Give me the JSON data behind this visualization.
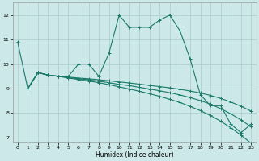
{
  "title": "",
  "xlabel": "Humidex (Indice chaleur)",
  "bg_color": "#cce8e8",
  "grid_color": "#aacccc",
  "line_color": "#1a7a6a",
  "xlim": [
    -0.5,
    23.5
  ],
  "ylim": [
    6.8,
    12.5
  ],
  "yticks": [
    7,
    8,
    9,
    10,
    11,
    12
  ],
  "xticks": [
    0,
    1,
    2,
    3,
    4,
    5,
    6,
    7,
    8,
    9,
    10,
    11,
    12,
    13,
    14,
    15,
    16,
    17,
    18,
    19,
    20,
    21,
    22,
    23
  ],
  "lines": [
    {
      "x": [
        0,
        1,
        2,
        3,
        4,
        5,
        6,
        7,
        8,
        9,
        10,
        11,
        12,
        13,
        14,
        15,
        16,
        17,
        18,
        19,
        20,
        21,
        22,
        23
      ],
      "y": [
        10.9,
        9.0,
        9.65,
        9.55,
        9.5,
        9.5,
        10.0,
        10.0,
        9.5,
        10.45,
        12.0,
        11.5,
        11.5,
        11.5,
        11.8,
        12.0,
        11.35,
        10.2,
        8.75,
        8.3,
        8.3,
        7.55,
        7.2,
        7.55
      ]
    },
    {
      "x": [
        1,
        2,
        3,
        4,
        5,
        6,
        7,
        8,
        9,
        10,
        11,
        12,
        13,
        14,
        15,
        16,
        17,
        18,
        19,
        20,
        21,
        22,
        23
      ],
      "y": [
        9.0,
        9.65,
        9.55,
        9.5,
        9.47,
        9.43,
        9.4,
        9.36,
        9.32,
        9.27,
        9.23,
        9.18,
        9.13,
        9.08,
        9.03,
        8.97,
        8.9,
        8.82,
        8.72,
        8.6,
        8.45,
        8.28,
        8.08
      ]
    },
    {
      "x": [
        1,
        2,
        3,
        4,
        5,
        6,
        7,
        8,
        9,
        10,
        11,
        12,
        13,
        14,
        15,
        16,
        17,
        18,
        19,
        20,
        21,
        22,
        23
      ],
      "y": [
        9.0,
        9.65,
        9.55,
        9.5,
        9.45,
        9.4,
        9.36,
        9.3,
        9.24,
        9.17,
        9.12,
        9.05,
        8.98,
        8.91,
        8.83,
        8.74,
        8.63,
        8.51,
        8.36,
        8.18,
        7.97,
        7.72,
        7.44
      ]
    },
    {
      "x": [
        1,
        2,
        3,
        4,
        5,
        6,
        7,
        8,
        9,
        10,
        11,
        12,
        13,
        14,
        15,
        16,
        17,
        18,
        19,
        20,
        21,
        22,
        23
      ],
      "y": [
        9.0,
        9.65,
        9.55,
        9.5,
        9.43,
        9.37,
        9.31,
        9.24,
        9.16,
        9.07,
        8.98,
        8.89,
        8.79,
        8.68,
        8.56,
        8.43,
        8.27,
        8.1,
        7.9,
        7.67,
        7.4,
        7.1,
        6.77
      ]
    }
  ]
}
